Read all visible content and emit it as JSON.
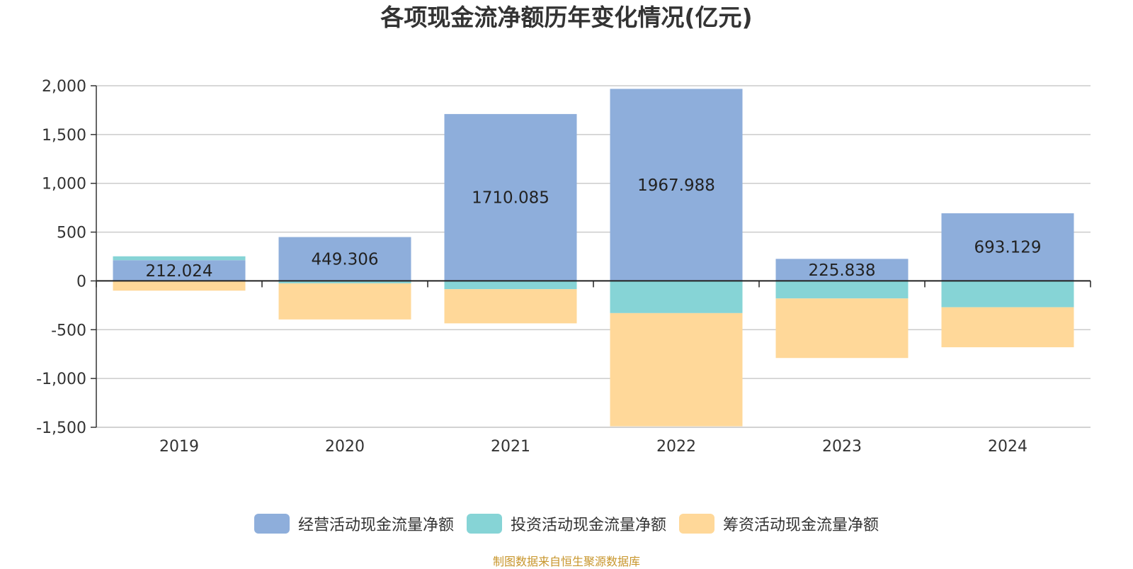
{
  "chart_data": {
    "type": "bar",
    "stacked": true,
    "title": "各项现金流净额历年变化情况(亿元)",
    "categories": [
      "2019",
      "2020",
      "2021",
      "2022",
      "2023",
      "2024"
    ],
    "series": [
      {
        "name": "经营活动现金流量净额",
        "color": "#8eaedb",
        "values": [
          212.024,
          449.306,
          1710.085,
          1967.988,
          225.838,
          693.129
        ],
        "labels": [
          "212.024",
          "449.306",
          "1710.085",
          "1967.988",
          "225.838",
          "693.129"
        ]
      },
      {
        "name": "投资活动现金流量净额",
        "color": "#86d4d6",
        "values": [
          40,
          -25,
          -85,
          -330,
          -180,
          -270
        ]
      },
      {
        "name": "筹资活动现金流量净额",
        "color": "#ffd899",
        "values": [
          -100,
          -370,
          -350,
          -1160,
          -610,
          -410
        ]
      }
    ],
    "ylim": [
      -1500,
      2000
    ],
    "yticks": [
      2000,
      1500,
      1000,
      500,
      0,
      -500,
      -1000,
      -1500
    ],
    "ytick_labels": [
      "2,000",
      "1,500",
      "1,000",
      "500",
      "0",
      "-500",
      "-1,000",
      "-1,500"
    ],
    "grid": true,
    "legend": "bottom"
  },
  "source_note": "制图数据来自恒生聚源数据库"
}
